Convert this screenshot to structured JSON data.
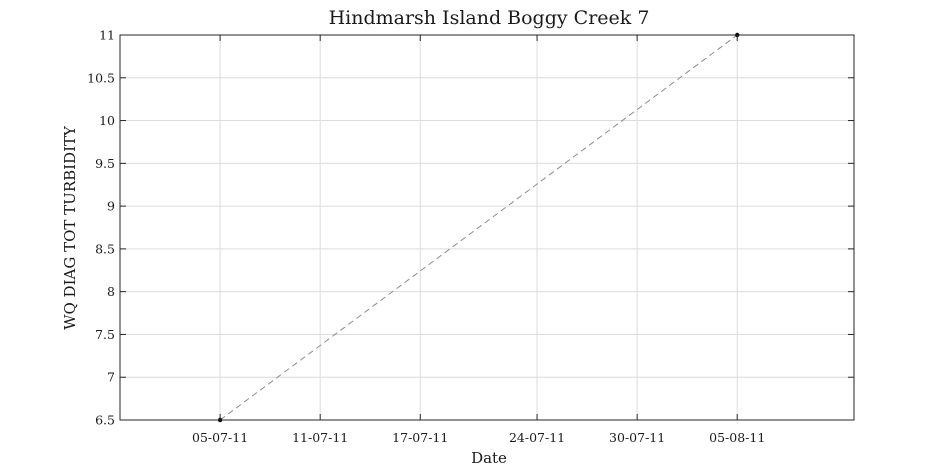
{
  "chart_data": {
    "type": "line",
    "title": "Hindmarsh Island Boggy Creek 7",
    "xlabel": "Date",
    "ylabel": "WQ DIAG TOT TURBIDITY",
    "x_type": "date",
    "x_ticks": [
      {
        "date": "2011-07-05",
        "label": "05-07-11"
      },
      {
        "date": "2011-07-11",
        "label": "11-07-11"
      },
      {
        "date": "2011-07-17",
        "label": "17-07-11"
      },
      {
        "date": "2011-07-24",
        "label": "24-07-11"
      },
      {
        "date": "2011-07-30",
        "label": "30-07-11"
      },
      {
        "date": "2011-08-05",
        "label": "05-08-11"
      }
    ],
    "xlim": [
      "2011-06-29",
      "2011-08-12"
    ],
    "ylim": [
      6.5,
      11
    ],
    "y_ticks": [
      "6.5",
      "7",
      "7.5",
      "8",
      "8.5",
      "9",
      "9.5",
      "10",
      "10.5",
      "11"
    ],
    "grid": true,
    "series": [
      {
        "color": "#8c8c8c",
        "line_style": "dashed",
        "marker_color": "#000000",
        "points": [
          {
            "x": "2011-07-05",
            "y": 6.5
          },
          {
            "x": "2011-08-05",
            "y": 11
          }
        ]
      }
    ]
  }
}
